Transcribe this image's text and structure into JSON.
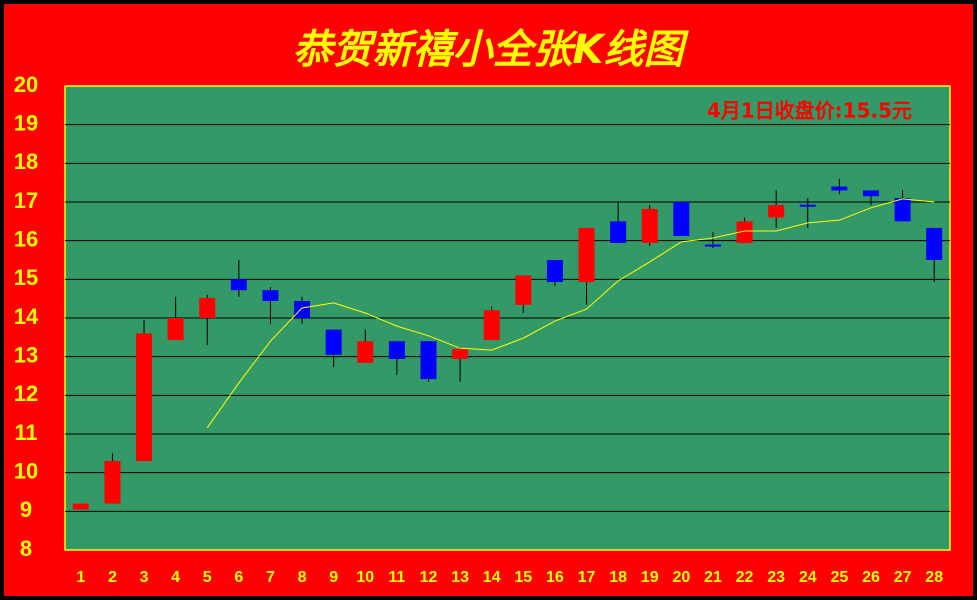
{
  "chart_data": {
    "type": "candlestick",
    "title": "恭贺新禧小全张K线图",
    "annotation": "4月1日收盘价:15.5元",
    "categories": [
      "1",
      "2",
      "3",
      "4",
      "5",
      "6",
      "7",
      "8",
      "9",
      "10",
      "11",
      "12",
      "13",
      "14",
      "15",
      "16",
      "17",
      "18",
      "19",
      "20",
      "21",
      "22",
      "23",
      "24",
      "25",
      "26",
      "27",
      "28"
    ],
    "open": [
      9.05,
      9.2,
      10.3,
      13.43,
      14.0,
      15.0,
      14.72,
      14.44,
      13.7,
      12.84,
      13.4,
      13.4,
      12.94,
      13.43,
      14.34,
      15.5,
      14.93,
      16.5,
      15.94,
      17.0,
      15.9,
      15.94,
      16.6,
      16.93,
      17.4,
      17.3,
      17.1,
      16.33
    ],
    "high": [
      9.2,
      10.5,
      13.95,
      14.55,
      14.6,
      15.5,
      14.8,
      14.55,
      13.7,
      13.7,
      13.4,
      13.4,
      13.25,
      14.3,
      15.1,
      15.5,
      16.33,
      17.0,
      16.92,
      17.0,
      16.22,
      16.6,
      17.3,
      17.1,
      17.6,
      17.3,
      17.3,
      16.33
    ],
    "low": [
      9.05,
      9.2,
      10.3,
      13.43,
      13.3,
      14.55,
      13.85,
      13.85,
      12.73,
      12.84,
      12.53,
      12.35,
      12.35,
      13.43,
      14.13,
      14.83,
      14.34,
      15.94,
      15.86,
      16.12,
      15.81,
      15.94,
      16.33,
      16.33,
      17.2,
      16.92,
      16.5,
      14.93
    ],
    "close": [
      9.2,
      10.3,
      13.6,
      14.0,
      14.52,
      14.72,
      14.44,
      14.0,
      13.05,
      13.4,
      12.94,
      12.42,
      13.2,
      14.2,
      15.1,
      14.93,
      16.33,
      15.94,
      16.82,
      16.12,
      15.86,
      16.5,
      16.92,
      16.9,
      17.3,
      17.15,
      16.5,
      15.5
    ],
    "up_color": "#ff0000",
    "down_color": "#0000ff",
    "ma": {
      "color": "#ffff00",
      "values": [
        null,
        null,
        null,
        null,
        11.16,
        12.32,
        13.4,
        14.26,
        14.39,
        14.13,
        13.79,
        13.54,
        13.22,
        13.17,
        13.48,
        13.92,
        14.23,
        14.96,
        15.45,
        15.97,
        16.07,
        16.25,
        16.25,
        16.46,
        16.53,
        16.85,
        17.08,
        17.0
      ]
    },
    "ylim": [
      8,
      20
    ],
    "yticks": [
      8,
      9,
      10,
      11,
      12,
      13,
      14,
      15,
      16,
      17,
      18,
      19,
      20
    ],
    "grid": true
  }
}
